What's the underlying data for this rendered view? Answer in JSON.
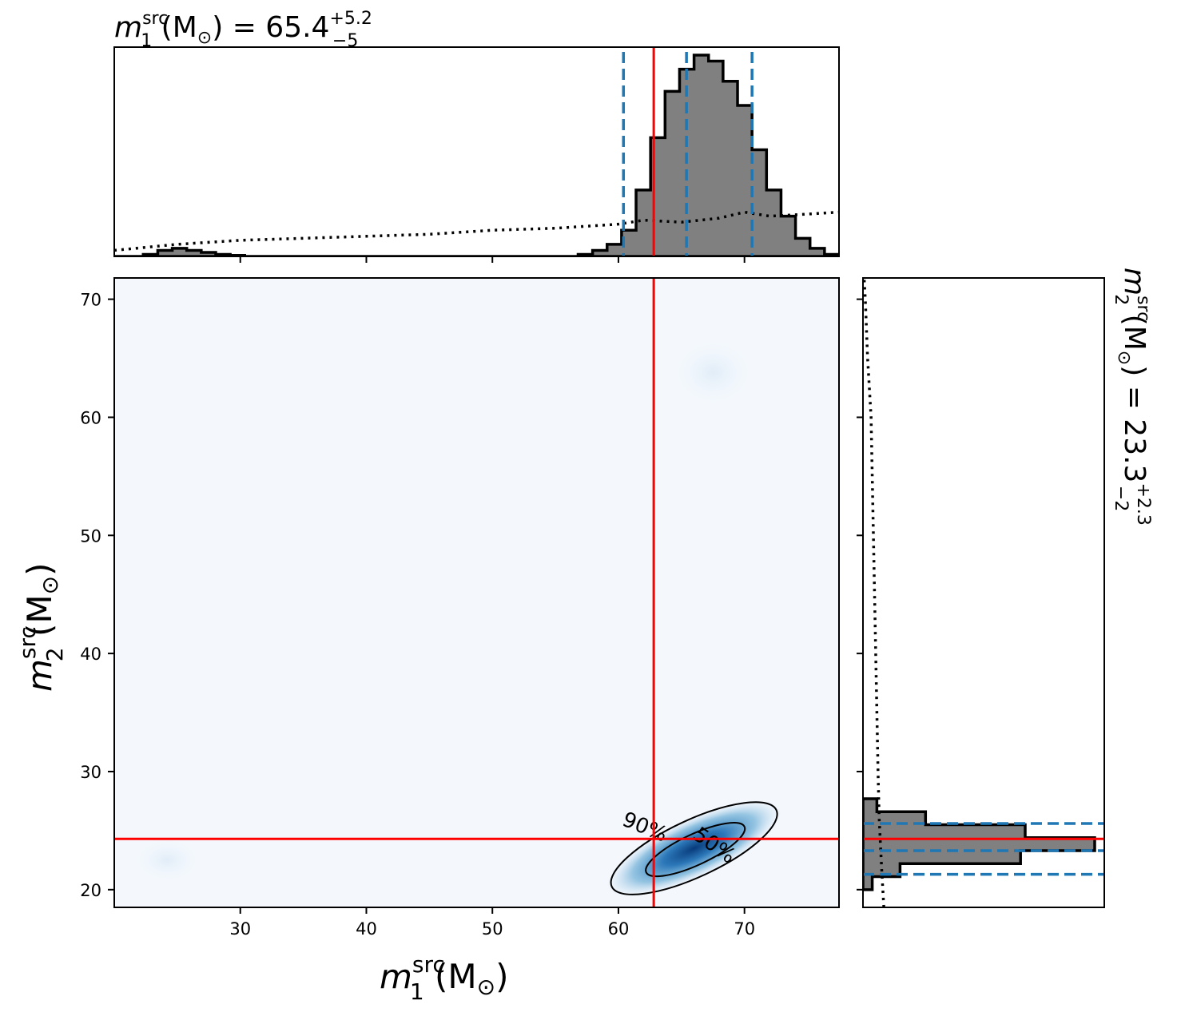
{
  "chart_data": [
    {
      "panel": "top-marginal",
      "type": "histogram",
      "title_base": "m",
      "title_sub": "1",
      "title_sup": "src",
      "title_unit": " (M",
      "title_sun": "⊙",
      "title_eq": ") = 65.4",
      "title_plus": "+5.2",
      "title_minus": "−5",
      "x_range": [
        20,
        77.5
      ],
      "median": 65.4,
      "ci_low": 60.4,
      "ci_high": 70.6,
      "injected": 62.8,
      "bin_edges": [
        20.0,
        21.15,
        22.3,
        23.45,
        24.6,
        25.75,
        26.9,
        28.05,
        29.2,
        30.35,
        31.5,
        32.65,
        33.8,
        34.95,
        36.1,
        37.25,
        38.4,
        39.55,
        40.7,
        41.85,
        43.0,
        44.15,
        45.3,
        46.45,
        47.6,
        48.75,
        49.9,
        51.05,
        52.2,
        53.35,
        54.5,
        55.65,
        56.8,
        57.95,
        59.1,
        60.25,
        61.4,
        62.55,
        63.7,
        64.85,
        66.0,
        67.15,
        68.3,
        69.45,
        70.6,
        71.75,
        72.9,
        74.05,
        75.2,
        76.35,
        77.5
      ],
      "density": [
        0.0,
        0.0,
        0.01,
        0.03,
        0.04,
        0.03,
        0.02,
        0.01,
        0.005,
        0.0,
        0.0,
        0.0,
        0.0,
        0.0,
        0.0,
        0.0,
        0.0,
        0.0,
        0.0,
        0.0,
        0.0,
        0.0,
        0.0,
        0.0,
        0.0,
        0.0,
        0.0,
        0.0,
        0.0,
        0.0,
        0.0,
        0.0,
        0.01,
        0.03,
        0.06,
        0.13,
        0.33,
        0.59,
        0.82,
        0.93,
        1.0,
        0.97,
        0.87,
        0.75,
        0.53,
        0.33,
        0.2,
        0.09,
        0.04,
        0.01
      ],
      "prior_x": [
        20,
        25,
        30,
        35,
        40,
        45,
        50,
        55,
        60,
        62,
        65,
        68,
        70,
        72,
        75,
        77.5
      ],
      "prior_density": [
        0.03,
        0.06,
        0.08,
        0.09,
        0.1,
        0.11,
        0.13,
        0.14,
        0.16,
        0.18,
        0.17,
        0.19,
        0.22,
        0.2,
        0.21,
        0.22
      ]
    },
    {
      "panel": "joint-2d",
      "type": "heatmap",
      "xlabel_base": "m",
      "xlabel_sub": "1",
      "xlabel_sup": "src",
      "xlabel_unit": " (M",
      "xlabel_sun": "⊙",
      "xlabel_close": ")",
      "ylabel_base": "m",
      "ylabel_sub": "2",
      "ylabel_sup": "src",
      "ylabel_unit": " (M",
      "ylabel_sun": "⊙",
      "ylabel_close": ")",
      "xlim": [
        20,
        77.5
      ],
      "ylim": [
        18.5,
        71.8
      ],
      "xticks": [
        "30",
        "40",
        "50",
        "60",
        "70"
      ],
      "yticks": [
        "20",
        "30",
        "40",
        "50",
        "60",
        "70"
      ],
      "injected": {
        "x": 62.8,
        "y": 24.3
      },
      "density_peak": {
        "x": 65.8,
        "y": 23.2
      },
      "contour_labels": [
        "90%",
        "50%"
      ],
      "contour_90": {
        "cx": 66.0,
        "cy": 23.5,
        "rx": 7.2,
        "ry": 2.4,
        "angle_deg": -25
      },
      "contour_50": {
        "cx": 66.1,
        "cy": 23.4,
        "rx": 4.3,
        "ry": 1.3,
        "angle_deg": -25
      },
      "colormap": "Blues"
    },
    {
      "panel": "right-marginal",
      "type": "histogram",
      "orientation": "horizontal",
      "title_base": "m",
      "title_sub": "2",
      "title_sup": "src",
      "title_unit": " (M",
      "title_sun": "⊙",
      "title_eq": ") = 23.3",
      "title_plus": "+2.3",
      "title_minus": "−2",
      "y_range": [
        18.5,
        71.8
      ],
      "median": 23.3,
      "ci_low": 21.3,
      "ci_high": 25.6,
      "injected": 24.3,
      "bin_edges": [
        20.0,
        21.1,
        22.2,
        23.3,
        24.4,
        25.5,
        26.6,
        27.7
      ],
      "density": [
        0.04,
        0.16,
        0.68,
        1.0,
        0.7,
        0.27,
        0.06
      ],
      "prior_y": [
        18.5,
        22,
        26,
        30,
        35,
        40,
        45,
        50,
        55,
        60,
        65,
        70,
        71.8
      ],
      "prior_density": [
        0.09,
        0.08,
        0.07,
        0.065,
        0.06,
        0.055,
        0.05,
        0.045,
        0.04,
        0.035,
        0.02,
        0.01,
        0.005
      ]
    }
  ],
  "colors": {
    "injected": "#ff0000",
    "quantiles": "#1f77b4",
    "hist_fill": "#808080",
    "edge": "#000000",
    "background_tint": "#f4f8fd"
  }
}
